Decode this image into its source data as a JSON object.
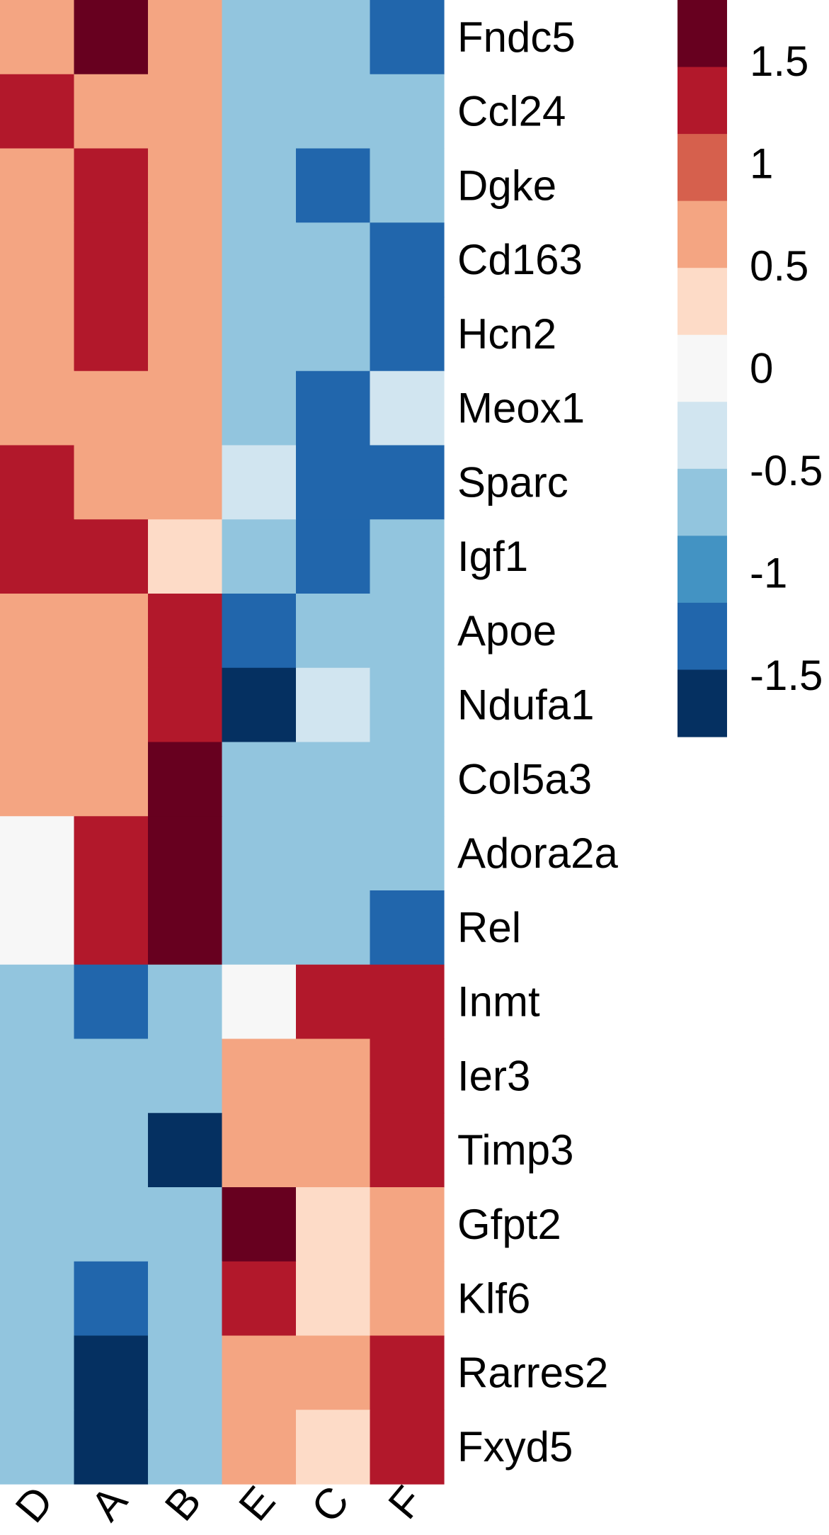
{
  "chart_data": {
    "type": "heatmap",
    "columns": [
      "D",
      "A",
      "B",
      "E",
      "C",
      "F"
    ],
    "rows": [
      "Fndc5",
      "Ccl24",
      "Dgke",
      "Cd163",
      "Hcn2",
      "Meox1",
      "Sparc",
      "Igf1",
      "Apoe",
      "Ndufa1",
      "Col5a3",
      "Adora2a",
      "Rel",
      "Inmt",
      "Ier3",
      "Timp3",
      "Gfpt2",
      "Klf6",
      "Rarres2",
      "Fxyd5"
    ],
    "values": [
      [
        0.5,
        1.75,
        0.75,
        -0.75,
        -0.5,
        -1.25
      ],
      [
        1.25,
        0.75,
        0.75,
        -0.75,
        -0.75,
        -0.75
      ],
      [
        0.5,
        1.25,
        0.75,
        -0.5,
        -1.25,
        -0.75
      ],
      [
        0.75,
        1.25,
        0.75,
        -0.75,
        -0.75,
        -1.25
      ],
      [
        0.5,
        1.25,
        0.75,
        -0.75,
        -0.5,
        -1.25
      ],
      [
        0.75,
        0.5,
        0.75,
        -0.75,
        -1.25,
        -0.25
      ],
      [
        1.25,
        0.75,
        0.5,
        -0.25,
        -1.25,
        -1.25
      ],
      [
        1.25,
        1.25,
        0.25,
        -0.5,
        -1.25,
        -0.5
      ],
      [
        0.75,
        0.5,
        1.25,
        -1.25,
        -0.5,
        -0.75
      ],
      [
        0.5,
        0.5,
        1.25,
        -1.75,
        -0.25,
        -0.75
      ],
      [
        0.5,
        0.5,
        1.75,
        -0.75,
        -0.75,
        -0.75
      ],
      [
        0.0,
        1.25,
        1.75,
        -0.5,
        -0.75,
        -0.75
      ],
      [
        0.0,
        1.25,
        1.75,
        -0.5,
        -0.75,
        -1.25
      ],
      [
        -0.75,
        -1.25,
        -0.5,
        0.0,
        1.25,
        1.25
      ],
      [
        -0.75,
        -0.75,
        -0.75,
        0.5,
        0.75,
        1.25
      ],
      [
        -0.5,
        -0.5,
        -1.75,
        0.5,
        0.75,
        1.25
      ],
      [
        -0.75,
        -0.5,
        -0.75,
        1.75,
        0.25,
        0.5
      ],
      [
        -0.75,
        -1.25,
        -0.5,
        1.25,
        0.25,
        0.75
      ],
      [
        -0.5,
        -1.75,
        -0.5,
        0.75,
        0.5,
        1.25
      ],
      [
        -0.5,
        -1.75,
        -0.5,
        0.75,
        0.25,
        1.25
      ]
    ],
    "legend": {
      "placement": "right",
      "ticks": [
        "1.5",
        "1",
        "0.5",
        "0",
        "-0.5",
        "-1",
        "-1.5"
      ],
      "tick_values": [
        1.5,
        1,
        0.5,
        0,
        -0.5,
        -1,
        -1.5
      ],
      "range": [
        -1.8,
        1.8
      ],
      "colors_high_to_low": [
        "#67001f",
        "#b2182b",
        "#d6604d",
        "#f4a582",
        "#fddbc7",
        "#f7f7f7",
        "#d1e5f0",
        "#92c5de",
        "#4393c3",
        "#2166ac",
        "#053061"
      ]
    }
  }
}
